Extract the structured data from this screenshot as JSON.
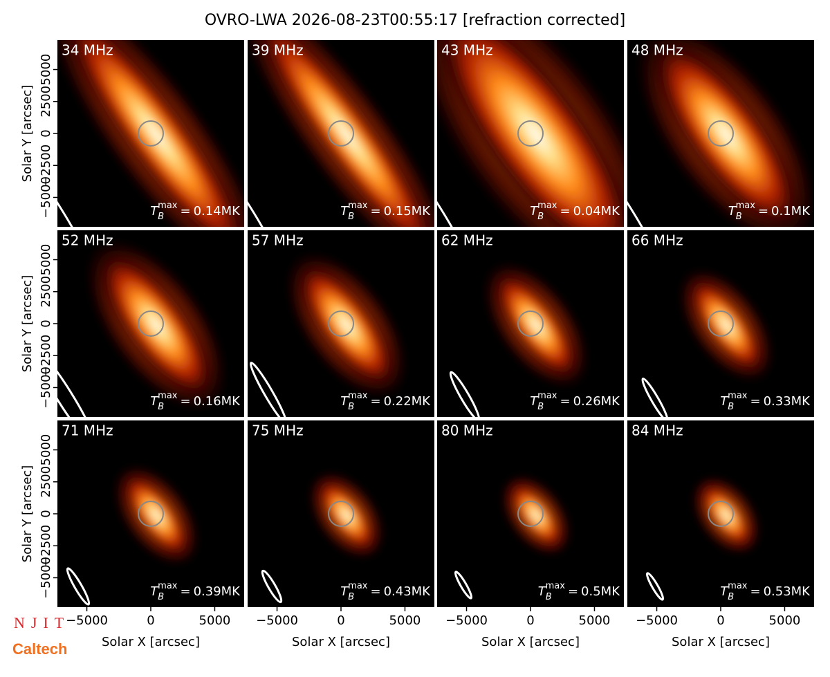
{
  "chart_data": {
    "type": "image-grid",
    "title": "OVRO-LWA 2026-08-23T00:55:17 [refraction corrected]",
    "xlabel": "Solar X [arcsec]",
    "ylabel": "Solar Y [arcsec]",
    "xlim": [
      -7300,
      7300
    ],
    "ylim": [
      -7300,
      7300
    ],
    "xticks": [
      {
        "value": -5000,
        "label": "−5000"
      },
      0,
      5000
    ],
    "yticks": [
      {
        "value": -5000,
        "label": "−5000"
      },
      {
        "value": -2500,
        "label": "−2500"
      },
      0,
      2500,
      5000
    ],
    "tb_symbol": "T",
    "tb_sub": "B",
    "tb_sup": "max",
    "tb_eq": "=",
    "panels": [
      {
        "title": "34 MHz",
        "tb_max": "0.14MK"
      },
      {
        "title": "39 MHz",
        "tb_max": "0.15MK"
      },
      {
        "title": "43 MHz",
        "tb_max": "0.04MK"
      },
      {
        "title": "48 MHz",
        "tb_max": "0.1MK"
      },
      {
        "title": "52 MHz",
        "tb_max": "0.16MK"
      },
      {
        "title": "57 MHz",
        "tb_max": "0.22MK"
      },
      {
        "title": "62 MHz",
        "tb_max": "0.26MK"
      },
      {
        "title": "66 MHz",
        "tb_max": "0.33MK"
      },
      {
        "title": "71 MHz",
        "tb_max": "0.39MK"
      },
      {
        "title": "75 MHz",
        "tb_max": "0.43MK"
      },
      {
        "title": "80 MHz",
        "tb_max": "0.5MK"
      },
      {
        "title": "84 MHz",
        "tb_max": "0.53MK"
      }
    ],
    "logos": [
      "NJIT",
      "Caltech"
    ]
  }
}
